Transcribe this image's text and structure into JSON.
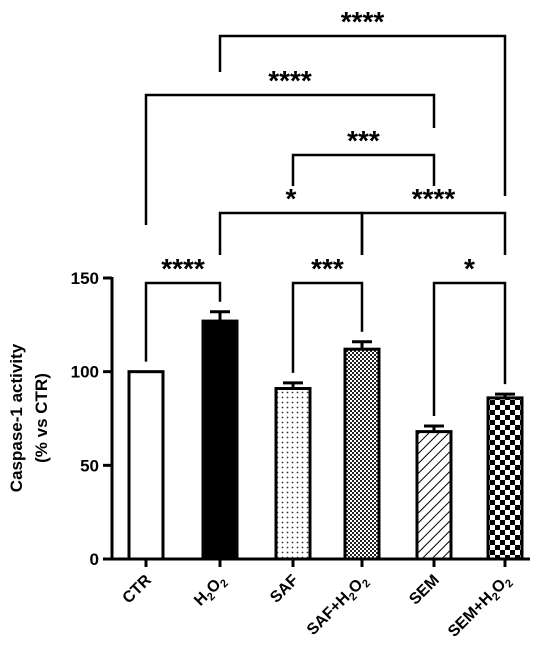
{
  "chart_data": {
    "type": "bar",
    "ylabel_lines": [
      "Caspase-1 activity",
      "(% vs CTR)"
    ],
    "ylim": [
      0,
      150
    ],
    "yticks": [
      0,
      50,
      100,
      150
    ],
    "grid": false,
    "legend": "none",
    "categories": [
      {
        "base": "CTR",
        "sub": "",
        "suffix": ""
      },
      {
        "base": "H",
        "sub": "2",
        "mid": "O",
        "sub2": "2",
        "suffix": ""
      },
      {
        "base": "SAF",
        "sub": "",
        "suffix": ""
      },
      {
        "base": "SAF+H",
        "sub": "2",
        "mid": "O",
        "sub2": "2",
        "suffix": ""
      },
      {
        "base": "SEM",
        "sub": "",
        "suffix": ""
      },
      {
        "base": "SEM+H",
        "sub": "2",
        "mid": "O",
        "sub2": "2",
        "suffix": ""
      }
    ],
    "values": [
      100,
      127,
      91,
      112,
      68,
      86
    ],
    "errors": [
      0,
      5,
      3,
      4,
      3,
      2
    ],
    "patterns": [
      "white",
      "black",
      "dots",
      "crosshatch",
      "diagonal",
      "checker"
    ],
    "significance": [
      {
        "from": 0,
        "to": 1,
        "label": "****",
        "level": 0
      },
      {
        "from": 2,
        "to": 3,
        "label": "***",
        "level": 0
      },
      {
        "from": 4,
        "to": 5,
        "label": "*",
        "level": 0
      },
      {
        "from": 1,
        "to": 3,
        "label": "*",
        "level": 1
      },
      {
        "from": 3,
        "to": 5,
        "label": "****",
        "level": 1
      },
      {
        "from": 2,
        "to": 4,
        "label": "***",
        "level": 2
      },
      {
        "from": 0,
        "to": 4,
        "label": "****",
        "level": 3
      },
      {
        "from": 1,
        "to": 5,
        "label": "****",
        "level": 4
      }
    ]
  }
}
